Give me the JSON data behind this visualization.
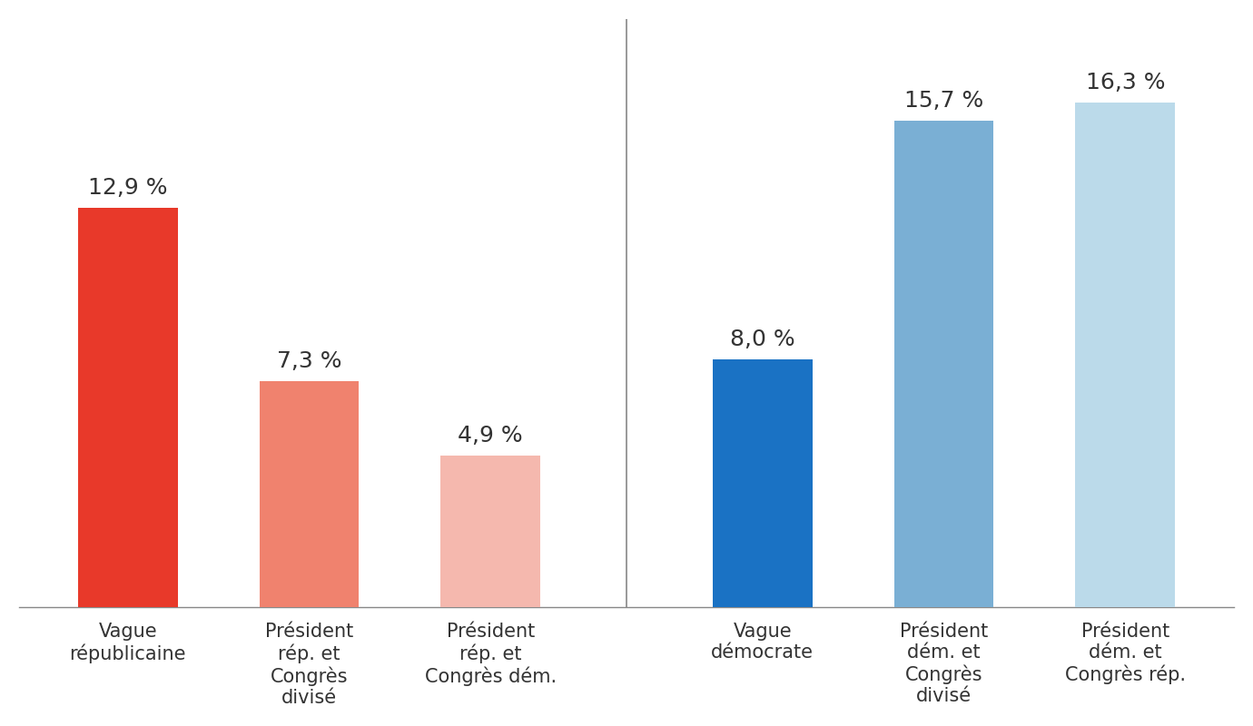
{
  "categories": [
    "Vague\nrépublicaine",
    "Président\nrép. et\nCongrès\ndivisé",
    "Président\nrép. et\nCongrès dém.",
    "Vague\ndémocrate",
    "Président\ndém. et\nCongrès\ndivisé",
    "Président\ndém. et\nCongrès rép."
  ],
  "values": [
    12.9,
    7.3,
    4.9,
    8.0,
    15.7,
    16.3
  ],
  "labels": [
    "12,9 %",
    "7,3 %",
    "4,9 %",
    "8,0 %",
    "15,7 %",
    "16,3 %"
  ],
  "colors": [
    "#E8392A",
    "#F0826E",
    "#F5B8AE",
    "#1A72C4",
    "#7AAFD4",
    "#BBDAEA"
  ],
  "background_color": "#FFFFFF",
  "ylim": [
    0,
    19
  ],
  "bar_width": 0.55,
  "label_fontsize": 18,
  "tick_fontsize": 15,
  "x_positions": [
    0,
    1,
    2,
    3.5,
    4.5,
    5.5
  ]
}
